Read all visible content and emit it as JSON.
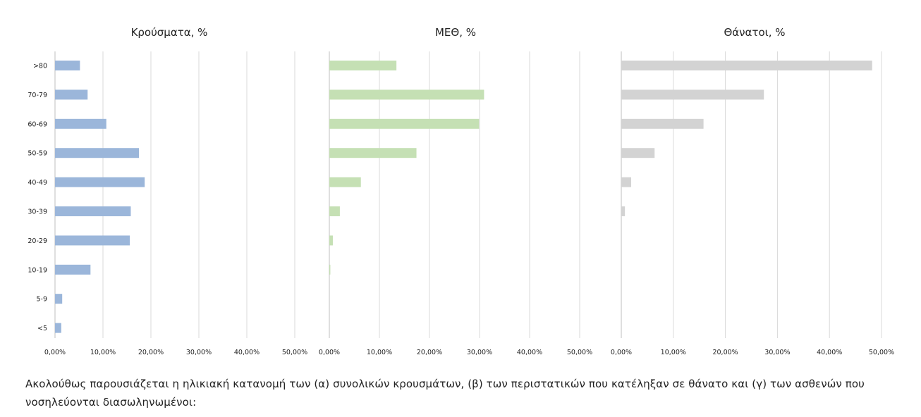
{
  "chart_data": [
    {
      "type": "bar",
      "orientation": "horizontal",
      "title": "Κρούσματα, %",
      "categories": [
        ">80",
        "70-79",
        "60-69",
        "50-59",
        "40-49",
        "30-39",
        "20-29",
        "10-19",
        "5-9",
        "<5"
      ],
      "values": [
        5.2,
        6.8,
        10.7,
        17.5,
        18.7,
        15.8,
        15.6,
        7.4,
        1.5,
        1.3
      ],
      "xlim": [
        0,
        50
      ],
      "xticks": [
        "0,00%",
        "10,00%",
        "20,00%",
        "30,00%",
        "40,00%",
        "50,00%"
      ],
      "color": "#9bb6da",
      "grid": true
    },
    {
      "type": "bar",
      "orientation": "horizontal",
      "title": "ΜΕΘ, %",
      "categories": [
        ">80",
        "70-79",
        "60-69",
        "50-59",
        "40-49",
        "30-39",
        "20-29",
        "10-19",
        "5-9",
        "<5"
      ],
      "values": [
        13.4,
        30.9,
        29.9,
        17.4,
        6.3,
        2.1,
        0.7,
        0.2,
        0,
        0
      ],
      "xlim": [
        0,
        50
      ],
      "xticks": [
        "0,00%",
        "10,00%",
        "20,00%",
        "30,00%",
        "40,00%",
        "50,00%"
      ],
      "color": "#c5e0b4",
      "grid": true
    },
    {
      "type": "bar",
      "orientation": "horizontal",
      "title": "Θάνατοι, %",
      "categories": [
        ">80",
        "70-79",
        "60-69",
        "50-59",
        "40-49",
        "30-39",
        "20-29",
        "10-19",
        "5-9",
        "<5"
      ],
      "values": [
        48.2,
        27.4,
        15.8,
        6.4,
        1.9,
        0.7,
        0,
        0,
        0,
        0
      ],
      "xlim": [
        0,
        50
      ],
      "xticks": [
        "0,00%",
        "10,00%",
        "20,00%",
        "30,00%",
        "40,00%",
        "50,00%"
      ],
      "color": "#d3d3d3",
      "grid": true
    }
  ],
  "caption": "Ακολούθως παρουσιάζεται η ηλικιακή κατανομή των (α) συνολικών κρουσμάτων, (β) των περιστατικών που κατέληξαν σε θάνατο και (γ) των ασθενών που νοσηλεύονται διασωληνωμένοι:"
}
